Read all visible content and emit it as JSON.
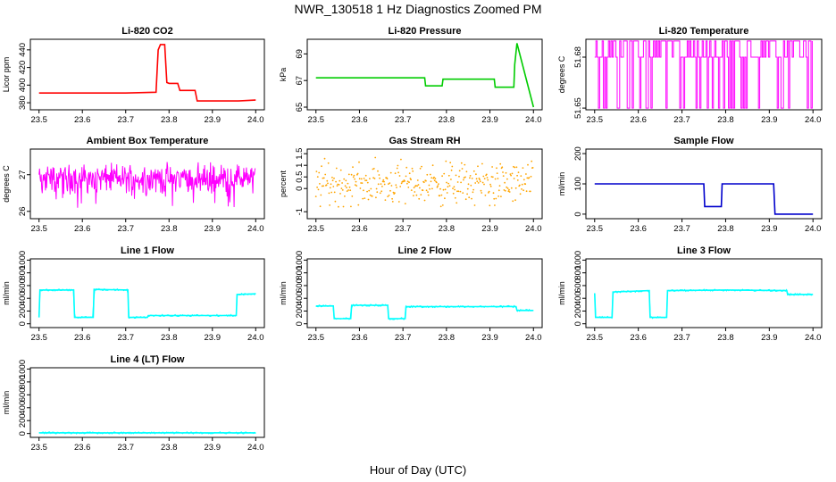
{
  "figure": {
    "title": "NWR_130518  1 Hz Diagnostics Zoomed PM",
    "xlabel": "Hour of Day (UTC)"
  },
  "chart_data": [
    {
      "type": "line",
      "title": "Li-820 CO2",
      "ylabel": "Licor ppm",
      "color": "#ff0000",
      "xlim": [
        23.48,
        24.02
      ],
      "ylim": [
        372,
        452
      ],
      "xticks": [
        23.5,
        23.6,
        23.7,
        23.8,
        23.9,
        24.0
      ],
      "yticks": [
        380,
        400,
        420,
        440
      ],
      "x": [
        23.5,
        23.6,
        23.7,
        23.77,
        23.775,
        23.78,
        23.79,
        23.795,
        23.8,
        23.82,
        23.825,
        23.86,
        23.865,
        23.9,
        23.96,
        24.0
      ],
      "y": [
        391,
        391,
        391,
        392,
        440,
        446,
        446,
        403,
        402,
        402,
        394,
        394,
        382,
        382,
        382,
        383
      ]
    },
    {
      "type": "line",
      "title": "Li-820 Pressure",
      "ylabel": "kPa",
      "color": "#00cc00",
      "xlim": [
        23.48,
        24.02
      ],
      "ylim": [
        64.8,
        70.1
      ],
      "xticks": [
        23.5,
        23.6,
        23.7,
        23.8,
        23.9,
        24.0
      ],
      "yticks": [
        65,
        67,
        69
      ],
      "x": [
        23.5,
        23.6,
        23.75,
        23.752,
        23.79,
        23.792,
        23.91,
        23.912,
        23.955,
        23.957,
        23.962,
        24.0
      ],
      "y": [
        67.2,
        67.2,
        67.2,
        66.6,
        66.6,
        67.1,
        67.1,
        66.5,
        66.5,
        68.2,
        69.8,
        65.0
      ]
    },
    {
      "type": "line",
      "title": "Li-820 Temperature",
      "ylabel": "degrees C",
      "color": "#ff00ff",
      "xlim": [
        23.48,
        24.02
      ],
      "ylim": [
        51.649,
        51.6905
      ],
      "xticks": [
        23.5,
        23.6,
        23.7,
        23.8,
        23.9,
        24.0
      ],
      "yticks": [
        51.65,
        51.68
      ],
      "levels": [
        51.65,
        51.68,
        51.6895
      ]
    },
    {
      "type": "line",
      "title": "Ambient Box Temperature",
      "ylabel": "degrees C",
      "color": "#ff00ff",
      "xlim": [
        23.48,
        24.02
      ],
      "ylim": [
        25.8,
        27.7
      ],
      "xticks": [
        23.5,
        23.6,
        23.7,
        23.8,
        23.9,
        24.0
      ],
      "yticks": [
        26.0,
        27.0
      ],
      "mean": 26.9,
      "spread": 0.6
    },
    {
      "type": "scatter",
      "title": "Gas Stream RH",
      "ylabel": "percent",
      "color": "#ffa500",
      "xlim": [
        23.48,
        24.02
      ],
      "ylim": [
        -1.3,
        1.7
      ],
      "xticks": [
        23.5,
        23.6,
        23.7,
        23.8,
        23.9,
        24.0
      ],
      "yticks": [
        -1.0,
        0.0,
        0.5,
        1.0,
        1.5
      ],
      "mean": 0.2,
      "spread": 0.9
    },
    {
      "type": "line",
      "title": "Sample Flow",
      "ylabel": "ml/min",
      "color": "#0000cc",
      "xlim": [
        23.48,
        24.02
      ],
      "ylim": [
        -15,
        215
      ],
      "xticks": [
        23.5,
        23.6,
        23.7,
        23.8,
        23.9,
        24.0
      ],
      "yticks": [
        0,
        100,
        200
      ],
      "x": [
        23.5,
        23.75,
        23.752,
        23.79,
        23.792,
        23.91,
        23.913,
        24.0
      ],
      "y": [
        100,
        100,
        25,
        25,
        100,
        100,
        0,
        0
      ]
    },
    {
      "type": "line",
      "title": "Line 1 Flow",
      "ylabel": "ml/min",
      "color": "#00ffff",
      "xlim": [
        23.48,
        24.02
      ],
      "ylim": [
        -60,
        1020
      ],
      "xticks": [
        23.5,
        23.6,
        23.7,
        23.8,
        23.9,
        24.0
      ],
      "yticks": [
        0,
        200,
        400,
        600,
        800,
        1000
      ],
      "x": [
        23.5,
        23.502,
        23.58,
        23.582,
        23.625,
        23.627,
        23.705,
        23.707,
        23.75,
        23.752,
        23.955,
        23.957,
        24.0
      ],
      "y": [
        100,
        530,
        530,
        100,
        100,
        540,
        530,
        100,
        100,
        130,
        130,
        460,
        470
      ]
    },
    {
      "type": "line",
      "title": "Line 2 Flow",
      "ylabel": "ml/min",
      "color": "#00ffff",
      "xlim": [
        23.48,
        24.02
      ],
      "ylim": [
        -60,
        1020
      ],
      "xticks": [
        23.5,
        23.6,
        23.7,
        23.8,
        23.9,
        24.0
      ],
      "yticks": [
        0,
        200,
        400,
        600,
        800,
        1000
      ],
      "x": [
        23.5,
        23.54,
        23.542,
        23.58,
        23.582,
        23.665,
        23.667,
        23.705,
        23.707,
        23.96,
        23.962,
        24.0
      ],
      "y": [
        280,
        280,
        80,
        80,
        290,
        290,
        80,
        80,
        270,
        270,
        210,
        210
      ]
    },
    {
      "type": "line",
      "title": "Line 3 Flow",
      "ylabel": "ml/min",
      "color": "#00ffff",
      "xlim": [
        23.48,
        24.02
      ],
      "ylim": [
        -60,
        1020
      ],
      "xticks": [
        23.5,
        23.6,
        23.7,
        23.8,
        23.9,
        24.0
      ],
      "yticks": [
        0,
        200,
        400,
        600,
        800,
        1000
      ],
      "x": [
        23.5,
        23.502,
        23.54,
        23.542,
        23.625,
        23.627,
        23.665,
        23.667,
        23.8,
        23.94,
        23.942,
        24.0
      ],
      "y": [
        480,
        100,
        100,
        500,
        520,
        100,
        100,
        520,
        530,
        520,
        460,
        460
      ]
    },
    {
      "type": "line",
      "title": "Line 4 (LT) Flow",
      "ylabel": "ml/min",
      "color": "#00ffff",
      "xlim": [
        23.48,
        24.02
      ],
      "ylim": [
        -60,
        1020
      ],
      "xticks": [
        23.5,
        23.6,
        23.7,
        23.8,
        23.9,
        24.0
      ],
      "yticks": [
        0,
        200,
        400,
        600,
        800,
        1000
      ],
      "x": [
        23.5,
        24.0
      ],
      "y": [
        10,
        10
      ]
    }
  ]
}
